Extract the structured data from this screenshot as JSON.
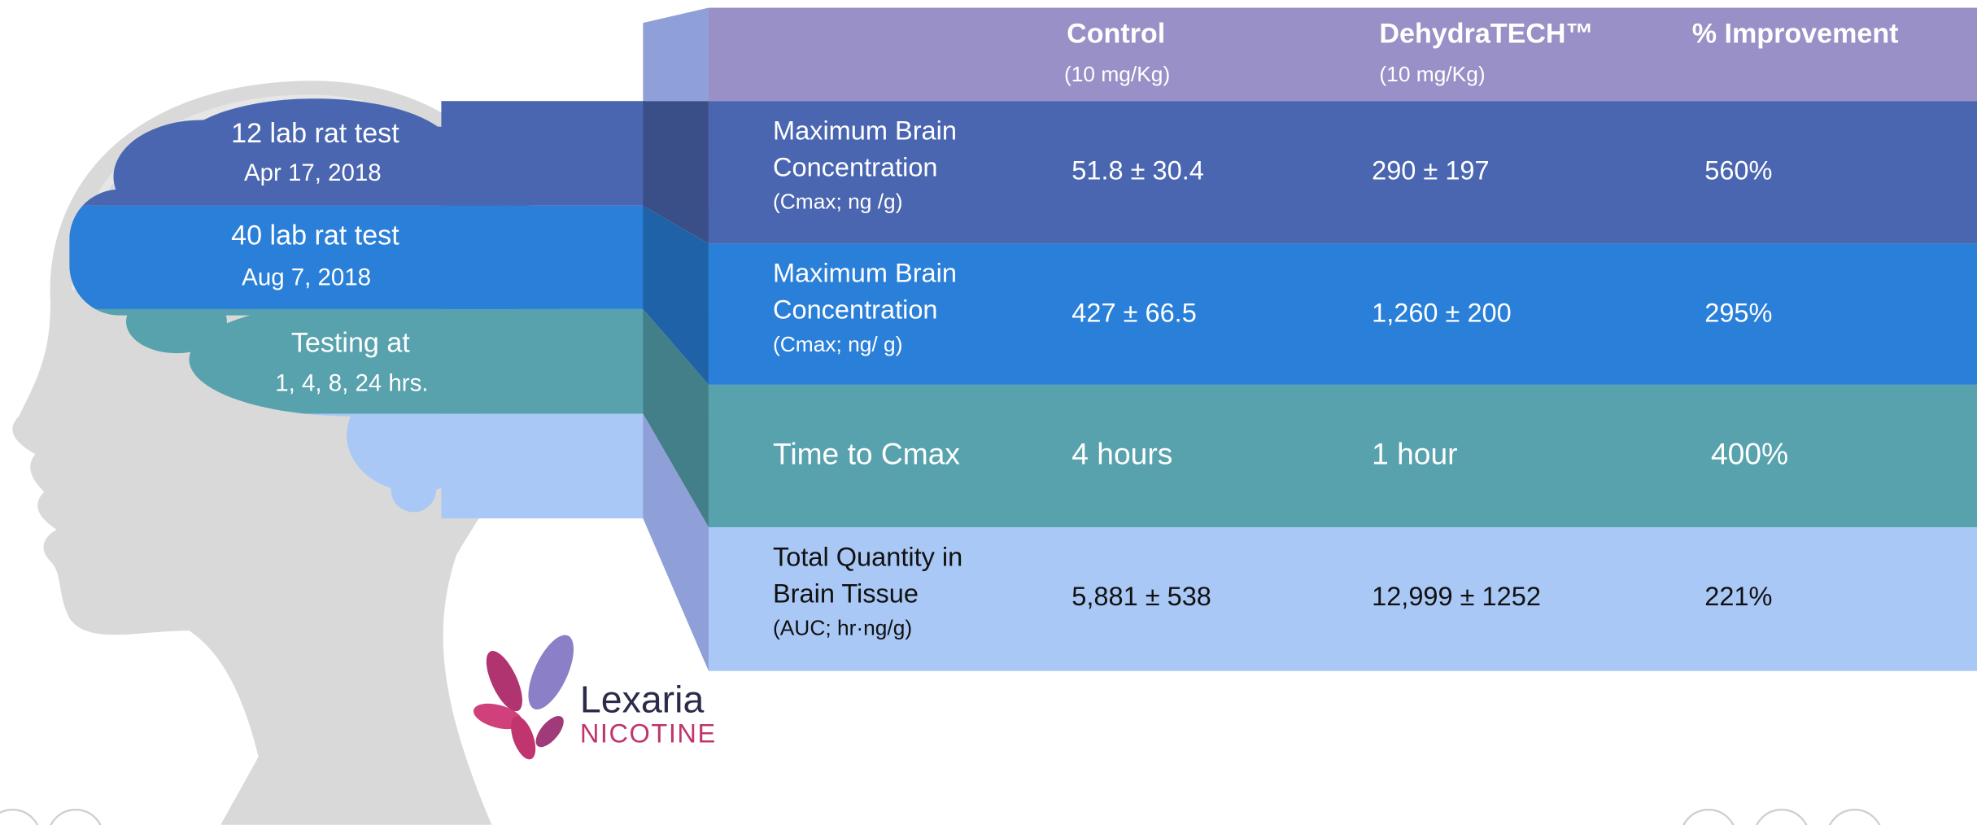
{
  "brain_labels": [
    {
      "title": "12 lab rat test",
      "subtitle": "Apr 17, 2018"
    },
    {
      "title": "40 lab rat test",
      "subtitle": "Aug 7, 2018"
    },
    {
      "title": "Testing at",
      "subtitle": "1, 4, 8, 24 hrs."
    }
  ],
  "table": {
    "columns": [
      {
        "name": "Control",
        "note": "(10 mg/Kg)"
      },
      {
        "name": "DehydraTECH™",
        "note": "(10 mg/Kg)"
      },
      {
        "name": "% Improvement"
      }
    ],
    "rows": [
      {
        "label": [
          "Maximum Brain",
          "Concentration"
        ],
        "unit": "(Cmax; ng /g)",
        "cells": [
          "51.8 ± 30.4",
          "290 ± 197",
          "560%"
        ]
      },
      {
        "label": [
          "Maximum Brain",
          "Concentration"
        ],
        "unit": "(Cmax; ng/ g)",
        "cells": [
          "427 ± 66.5",
          "1,260 ± 200",
          "295%"
        ]
      },
      {
        "label": [
          "Time to Cmax"
        ],
        "cells": [
          "4 hours",
          "1 hour",
          "400%"
        ]
      },
      {
        "label": [
          "Total Quantity in",
          "Brain Tissue"
        ],
        "unit": "(AUC; hr·ng/g)",
        "cells": [
          "5,881 ± 538",
          "12,999 ± 1252",
          "221%"
        ]
      }
    ]
  },
  "logo": {
    "name": "Lexaria",
    "product": "NICOTINE"
  }
}
